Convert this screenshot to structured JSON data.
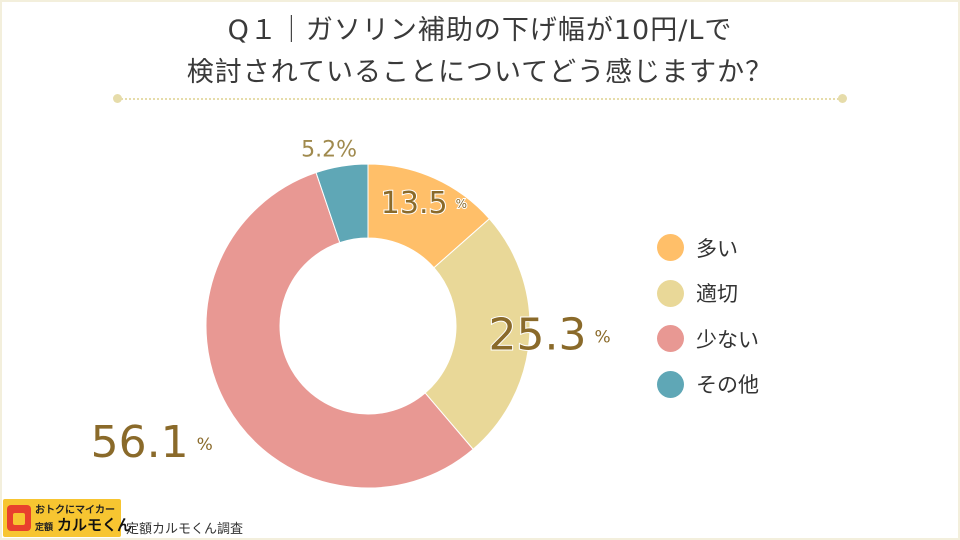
{
  "title": {
    "line1": "Q１｜ガソリン補助の下げ幅が10円/Lで",
    "line2": "検討されていることについてどう感じますか？"
  },
  "chart_data": {
    "type": "pie",
    "variant": "donut",
    "categories": [
      "多い",
      "適切",
      "少ない",
      "その他"
    ],
    "values": [
      13.5,
      25.3,
      56.1,
      5.2
    ],
    "unit": "%",
    "colors": [
      "#ffbf69",
      "#e9d898",
      "#e89893",
      "#5fa7b6"
    ],
    "label_color": "#8a6a2a",
    "legend_position": "right"
  },
  "footer": {
    "logo_tagline": "おトクにマイカー",
    "logo_prefix": "定額",
    "logo_name": "カルモくん",
    "source": "定額カルモくん調査"
  }
}
